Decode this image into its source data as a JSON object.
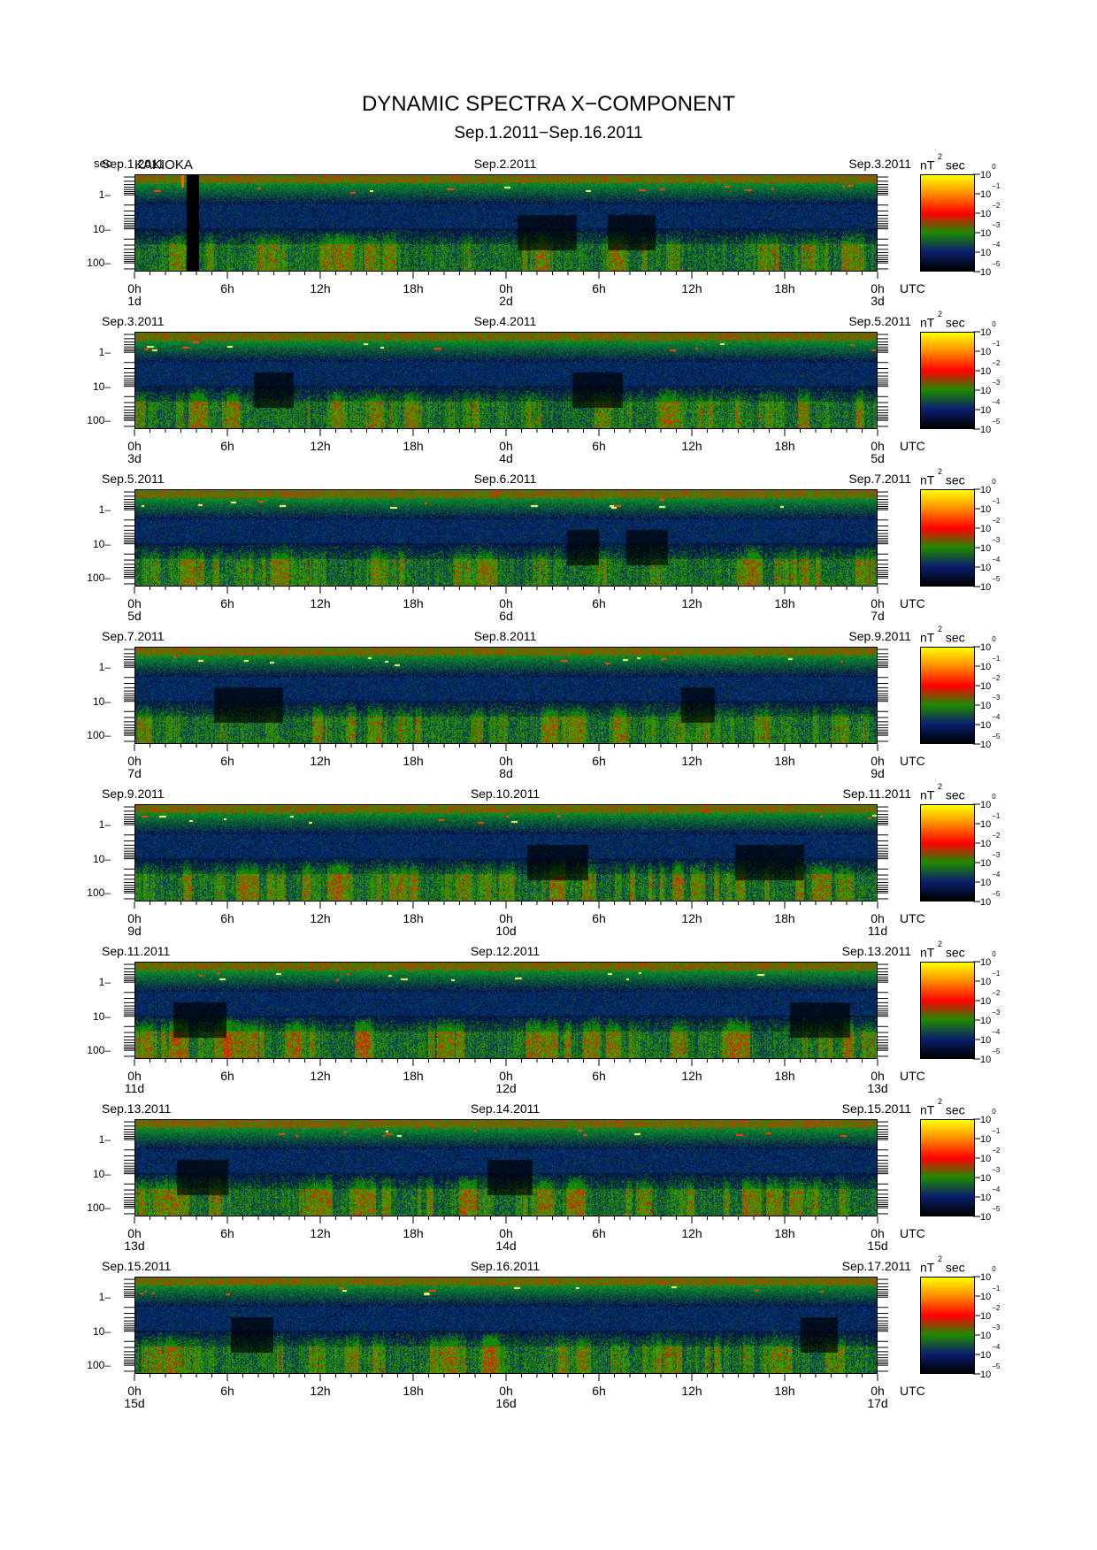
{
  "title": "DYNAMIC SPECTRA X−COMPONENT",
  "subtitle": "Sep.1.2011−Sep.16.2011",
  "station": "KAKIOKA",
  "y_unit": "sec",
  "colorbar": {
    "unit_base": "nT",
    "unit_exp": "2",
    "unit_suffix": "sec",
    "labels": [
      {
        "base": "10",
        "exp": "0"
      },
      {
        "base": "10",
        "exp": "−1"
      },
      {
        "base": "10",
        "exp": "−2"
      },
      {
        "base": "10",
        "exp": "−3"
      },
      {
        "base": "10",
        "exp": "−4"
      },
      {
        "base": "10",
        "exp": "−5"
      }
    ],
    "colors": [
      "#ffff00",
      "#ff8800",
      "#ff0000",
      "#1f8a00",
      "#0a1f6e",
      "#000000"
    ]
  },
  "y_ticks": [
    "1",
    "10",
    "100"
  ],
  "time_tick_labels": [
    "0h",
    "6h",
    "12h",
    "18h",
    "0h",
    "6h",
    "12h",
    "18h",
    "0h"
  ],
  "utc_label": "UTC",
  "panels": [
    {
      "dates": [
        "Sep.1.2011",
        "Sep.2.2011",
        "Sep.3.2011"
      ],
      "days": [
        "1d",
        "2d",
        "3d"
      ]
    },
    {
      "dates": [
        "Sep.3.2011",
        "Sep.4.2011",
        "Sep.5.2011"
      ],
      "days": [
        "3d",
        "4d",
        "5d"
      ]
    },
    {
      "dates": [
        "Sep.5.2011",
        "Sep.6.2011",
        "Sep.7.2011"
      ],
      "days": [
        "5d",
        "6d",
        "7d"
      ]
    },
    {
      "dates": [
        "Sep.7.2011",
        "Sep.8.2011",
        "Sep.9.2011"
      ],
      "days": [
        "7d",
        "8d",
        "9d"
      ]
    },
    {
      "dates": [
        "Sep.9.2011",
        "Sep.10.2011",
        "Sep.11.2011"
      ],
      "days": [
        "9d",
        "10d",
        "11d"
      ]
    },
    {
      "dates": [
        "Sep.11.2011",
        "Sep.12.2011",
        "Sep.13.2011"
      ],
      "days": [
        "11d",
        "12d",
        "13d"
      ]
    },
    {
      "dates": [
        "Sep.13.2011",
        "Sep.14.2011",
        "Sep.15.2011"
      ],
      "days": [
        "13d",
        "14d",
        "15d"
      ]
    },
    {
      "dates": [
        "Sep.15.2011",
        "Sep.16.2011",
        "Sep.17.2011"
      ],
      "days": [
        "15d",
        "16d",
        "17d"
      ]
    }
  ],
  "chart_data": {
    "type": "heatmap",
    "title": "DYNAMIC SPECTRA X−COMPONENT",
    "subtitle": "Sep.1.2011−Sep.16.2011",
    "ylabel": "sec",
    "y_scale": "log",
    "y_ticks": [
      1,
      10,
      100
    ],
    "x_ticks": [
      "0h",
      "6h",
      "12h",
      "18h",
      "0h",
      "6h",
      "12h",
      "18h",
      "0h"
    ],
    "xlabel": "UTC",
    "colorbar_label": "nT^2 sec",
    "colorbar_range": [
      1e-05,
      1
    ],
    "colorbar_scale": "log",
    "panel_dates": [
      [
        "Sep.1.2011",
        "Sep.2.2011",
        "Sep.3.2011"
      ],
      [
        "Sep.3.2011",
        "Sep.4.2011",
        "Sep.5.2011"
      ],
      [
        "Sep.5.2011",
        "Sep.6.2011",
        "Sep.7.2011"
      ],
      [
        "Sep.7.2011",
        "Sep.8.2011",
        "Sep.9.2011"
      ],
      [
        "Sep.9.2011",
        "Sep.10.2011",
        "Sep.11.2011"
      ],
      [
        "Sep.11.2011",
        "Sep.12.2011",
        "Sep.13.2011"
      ],
      [
        "Sep.13.2011",
        "Sep.14.2011",
        "Sep.15.2011"
      ],
      [
        "Sep.15.2011",
        "Sep.16.2011",
        "Sep.17.2011"
      ]
    ],
    "panel_activity": [
      0.45,
      0.5,
      0.45,
      0.45,
      0.8,
      0.85,
      0.65,
      0.5
    ]
  }
}
